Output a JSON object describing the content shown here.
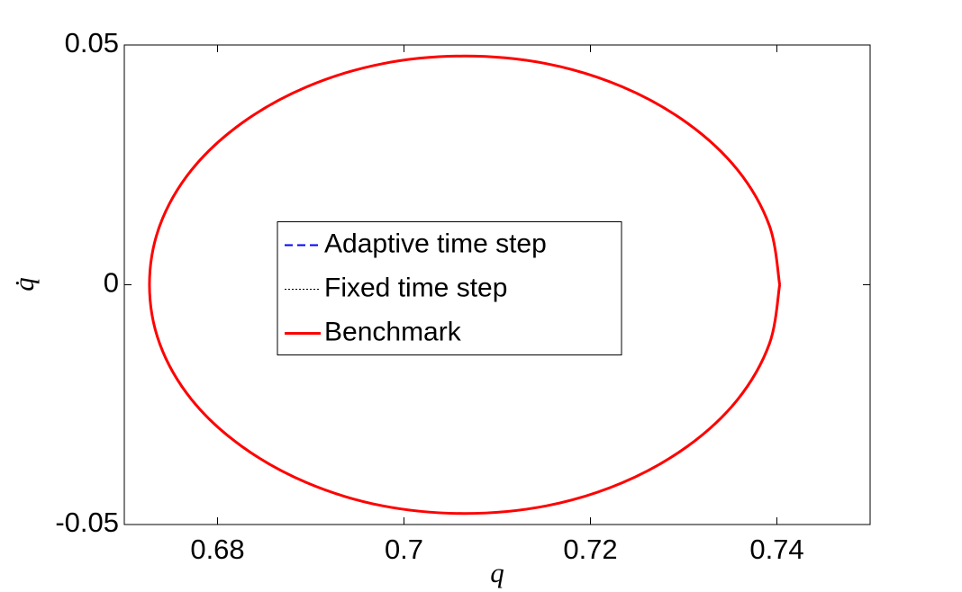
{
  "chart_data": {
    "type": "line",
    "xlabel": "q",
    "ylabel": "q̇",
    "xlim": [
      0.67,
      0.75
    ],
    "ylim": [
      -0.05,
      0.05
    ],
    "xticks": [
      0.68,
      0.7,
      0.72,
      0.74
    ],
    "yticks": [
      -0.05,
      0,
      0.05
    ],
    "grid": false,
    "legend_position": "center",
    "series": [
      {
        "name": "Adaptive time step",
        "color": "#0000ff",
        "linestyle": "--",
        "linewidth": 2,
        "x": [
          0.7403,
          0.7392,
          0.7358,
          0.7304,
          0.7234,
          0.7153,
          0.7065,
          0.6977,
          0.6896,
          0.6826,
          0.6772,
          0.6738,
          0.6727,
          0.6738,
          0.6772,
          0.6826,
          0.6896,
          0.6977,
          0.7065,
          0.7153,
          0.7234,
          0.7304,
          0.7358,
          0.7392,
          0.7403
        ],
        "values": [
          0,
          0.0123,
          0.0239,
          0.0337,
          0.0413,
          0.0461,
          0.0477,
          0.0461,
          0.0413,
          0.0337,
          0.0239,
          0.0123,
          0,
          -0.0123,
          -0.0239,
          -0.0337,
          -0.0413,
          -0.0461,
          -0.0477,
          -0.0461,
          -0.0413,
          -0.0337,
          -0.0239,
          -0.0123,
          0
        ]
      },
      {
        "name": "Fixed time step",
        "color": "#000000",
        "linestyle": ":",
        "linewidth": 1,
        "x": [
          0.7403,
          0.7392,
          0.7358,
          0.7304,
          0.7234,
          0.7153,
          0.7065,
          0.6977,
          0.6896,
          0.6826,
          0.6772,
          0.6738,
          0.6727,
          0.6738,
          0.6772,
          0.6826,
          0.6896,
          0.6977,
          0.7065,
          0.7153,
          0.7234,
          0.7304,
          0.7358,
          0.7392,
          0.7403
        ],
        "values": [
          0,
          0.0123,
          0.0239,
          0.0337,
          0.0413,
          0.0461,
          0.0477,
          0.0461,
          0.0413,
          0.0337,
          0.0239,
          0.0123,
          0,
          -0.0123,
          -0.0239,
          -0.0337,
          -0.0413,
          -0.0461,
          -0.0477,
          -0.0461,
          -0.0413,
          -0.0337,
          -0.0239,
          -0.0123,
          0
        ]
      },
      {
        "name": "Benchmark",
        "color": "#ff0000",
        "linestyle": "-",
        "linewidth": 3,
        "x": [
          0.7403,
          0.7392,
          0.7358,
          0.7304,
          0.7234,
          0.7153,
          0.7065,
          0.6977,
          0.6896,
          0.6826,
          0.6772,
          0.6738,
          0.6727,
          0.6738,
          0.6772,
          0.6826,
          0.6896,
          0.6977,
          0.7065,
          0.7153,
          0.7234,
          0.7304,
          0.7358,
          0.7392,
          0.7403
        ],
        "values": [
          0,
          0.0123,
          0.0239,
          0.0337,
          0.0413,
          0.0461,
          0.0477,
          0.0461,
          0.0413,
          0.0337,
          0.0239,
          0.0123,
          0,
          -0.0123,
          -0.0239,
          -0.0337,
          -0.0413,
          -0.0461,
          -0.0477,
          -0.0461,
          -0.0413,
          -0.0337,
          -0.0239,
          -0.0123,
          0
        ]
      }
    ]
  }
}
